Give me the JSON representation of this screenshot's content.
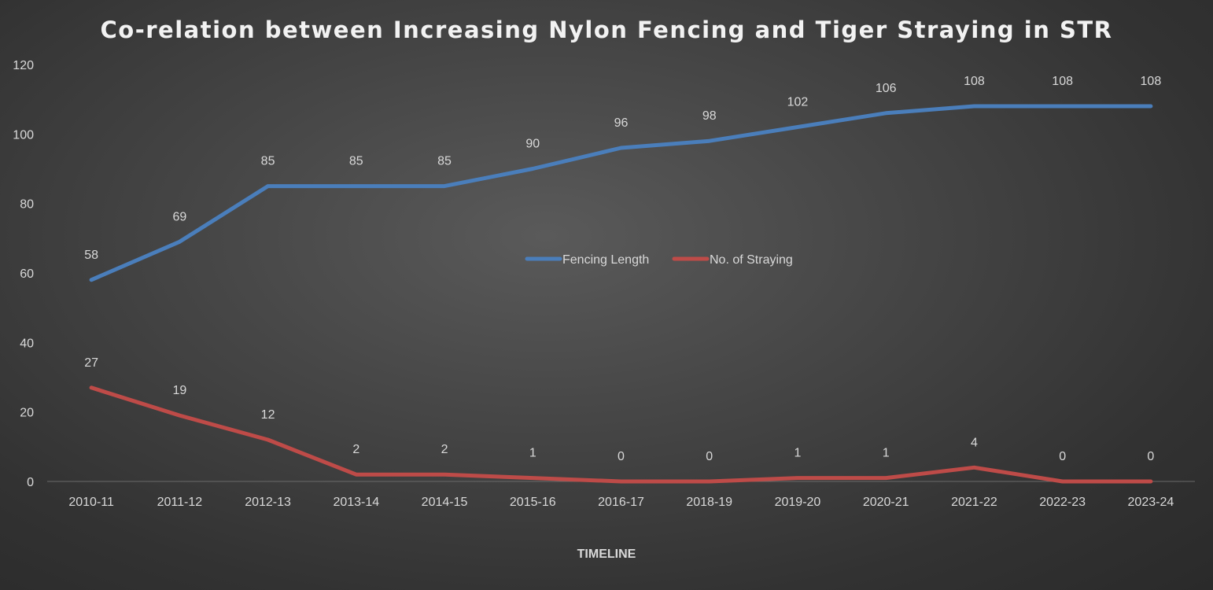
{
  "chart_data": {
    "type": "line",
    "title": "Co-relation between Increasing Nylon Fencing and Tiger Straying in STR",
    "xlabel": "TIMELINE",
    "ylabel": "",
    "categories": [
      "2010-11",
      "2011-12",
      "2012-13",
      "2013-14",
      "2014-15",
      "2015-16",
      "2016-17",
      "2018-19",
      "2019-20",
      "2020-21",
      "2021-22",
      "2022-23",
      "2023-24"
    ],
    "ylim": [
      0,
      120
    ],
    "yticks": [
      0,
      20,
      40,
      60,
      80,
      100,
      120
    ],
    "grid": false,
    "legend_position": "center",
    "data_labels": true,
    "series": [
      {
        "name": "Fencing Length",
        "color": "#4a7ebb",
        "values": [
          58,
          69,
          85,
          85,
          85,
          90,
          96,
          98,
          102,
          106,
          108,
          108,
          108
        ]
      },
      {
        "name": "No. of Straying",
        "color": "#be4b48",
        "values": [
          27,
          19,
          12,
          2,
          2,
          1,
          0,
          0,
          1,
          1,
          4,
          0,
          0
        ]
      }
    ]
  }
}
